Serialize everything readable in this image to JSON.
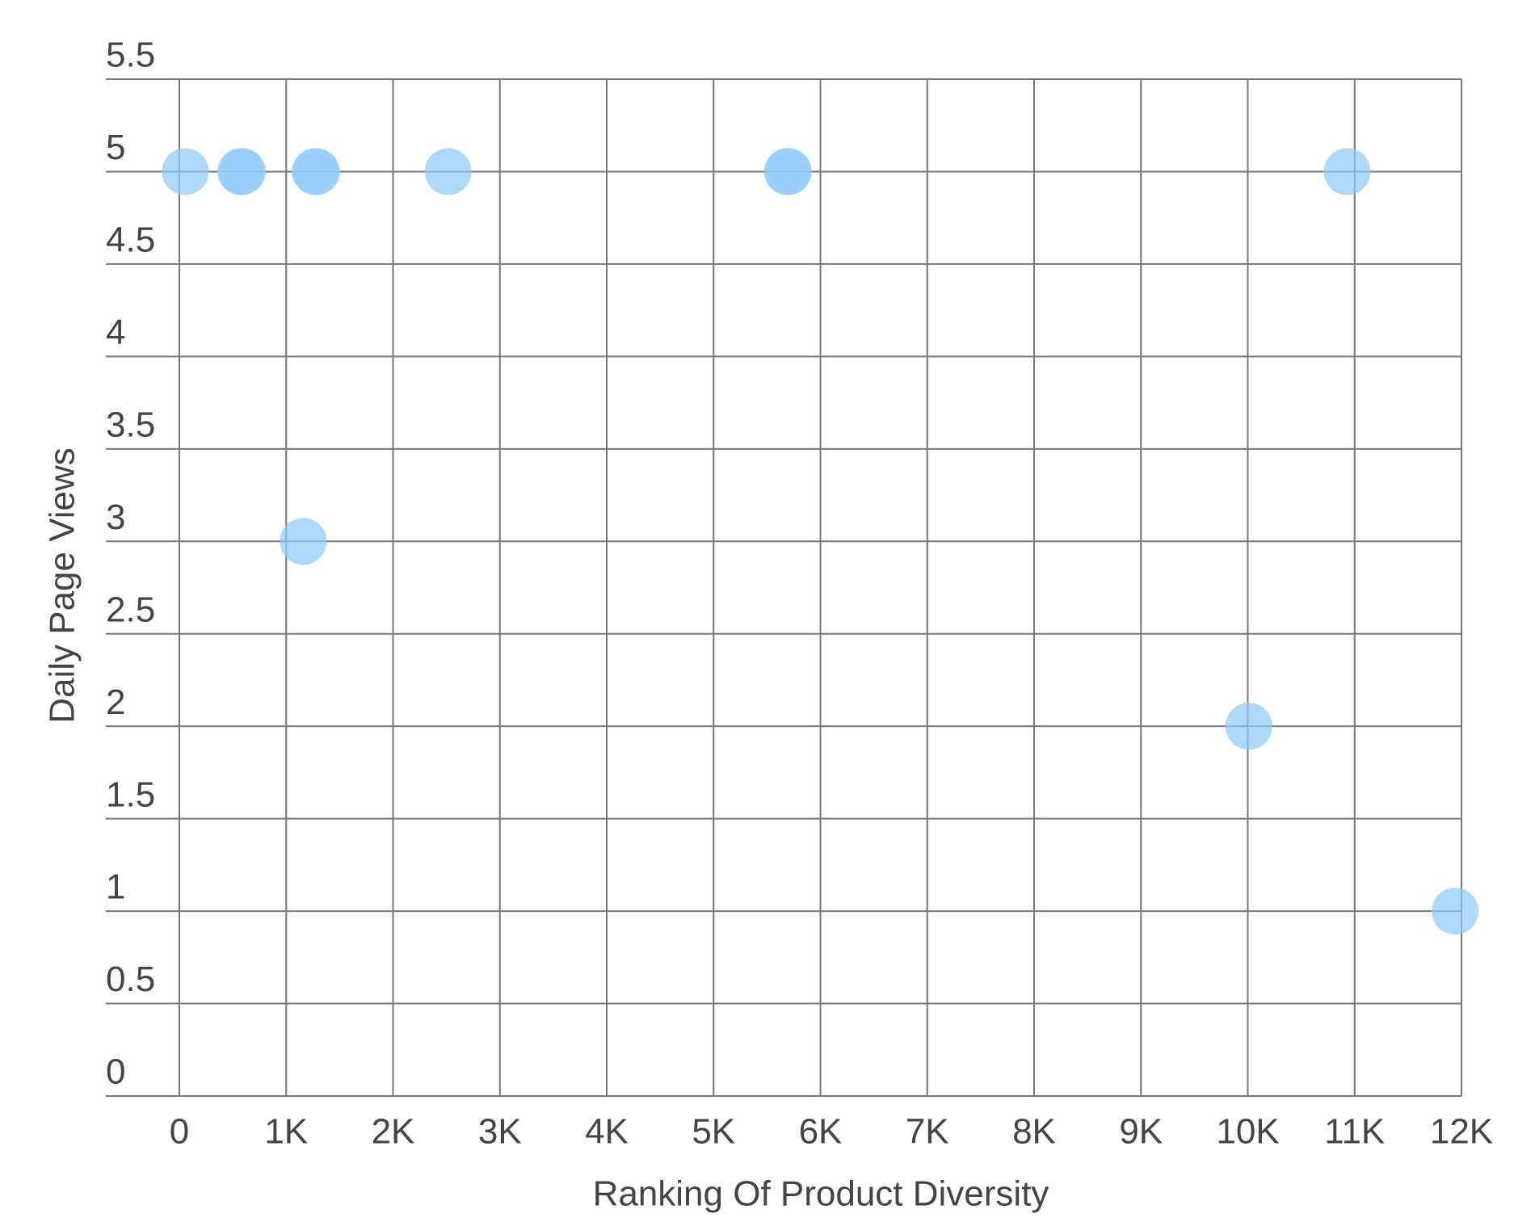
{
  "chart_data": {
    "type": "scatter",
    "xlabel": "Ranking Of Product Diversity",
    "ylabel": "Daily Page Views",
    "series": [
      {
        "color": "#90caf9",
        "x": [
          56,
          575,
          590,
          1270,
          1285,
          2515,
          5690,
          5700,
          10930,
          1160,
          10010,
          11940
        ],
        "values": [
          5,
          5,
          5,
          5,
          5,
          5,
          5,
          5,
          5,
          3,
          2,
          1
        ]
      }
    ],
    "xlim": [
      0,
      12000
    ],
    "xticks": [
      0,
      {
        "value": 1000,
        "label": "1K"
      },
      {
        "value": 2000,
        "label": "2K"
      },
      {
        "value": 3000,
        "label": "3K"
      },
      {
        "value": 4000,
        "label": "4K"
      },
      {
        "value": 5000,
        "label": "5K"
      },
      {
        "value": 6000,
        "label": "6K"
      },
      {
        "value": 7000,
        "label": "7K"
      },
      {
        "value": 8000,
        "label": "8K"
      },
      {
        "value": 9000,
        "label": "9K"
      },
      {
        "value": 10000,
        "label": "10K"
      },
      {
        "value": 11000,
        "label": "11K"
      },
      {
        "value": 12000,
        "label": "12K"
      }
    ],
    "ylim": [
      0,
      5.5
    ],
    "yticks": [
      0,
      0.5,
      1,
      1.5,
      2,
      2.5,
      3,
      3.5,
      4,
      4.5,
      5,
      5.5
    ],
    "grid": true
  }
}
